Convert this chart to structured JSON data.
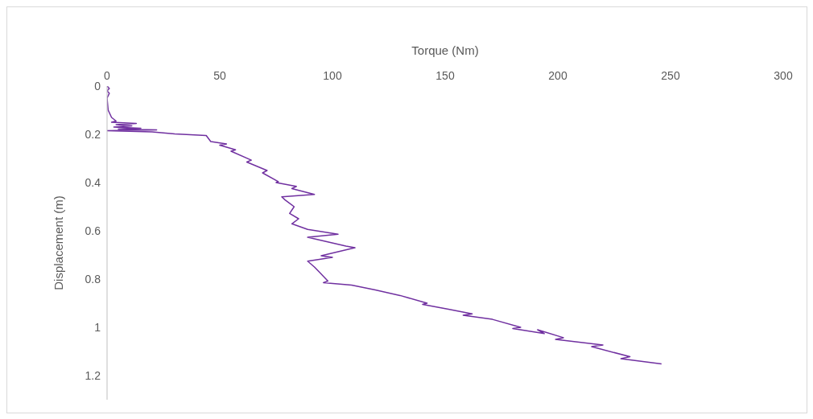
{
  "chart_data": {
    "type": "line",
    "xlabel": "Torque (Nm)",
    "ylabel": "Displacement (m)",
    "xlim": [
      0,
      300
    ],
    "xticks": [
      0,
      50,
      100,
      150,
      200,
      250,
      300
    ],
    "ylim": [
      1.3,
      0
    ],
    "yticks": [
      0,
      0.2,
      0.4,
      0.6,
      0.8,
      1,
      1.2
    ],
    "grid": false,
    "legend": false,
    "marker": "none",
    "line_style": "solid",
    "series": [
      {
        "color": "#7030a0",
        "x": [
          0,
          1,
          0,
          1,
          0,
          0.5,
          2,
          4,
          2,
          13,
          4,
          11,
          3,
          15,
          5,
          22,
          0,
          20,
          30,
          44,
          46,
          53,
          50,
          57,
          55,
          64,
          62,
          71,
          69,
          76,
          75,
          84,
          82,
          92,
          77.5,
          79,
          83,
          81,
          85,
          82,
          89,
          102.5,
          89,
          106,
          110,
          95,
          100,
          89,
          92,
          94,
          98,
          96,
          108.5,
          119,
          130,
          142,
          140,
          151,
          162,
          158,
          171,
          183.5,
          180,
          194,
          191,
          202.5,
          199,
          220,
          215,
          232,
          228,
          246
        ],
        "values": [
          0,
          0.01,
          0.02,
          0.03,
          0.05,
          0.1,
          0.13,
          0.145,
          0.15,
          0.155,
          0.16,
          0.165,
          0.17,
          0.175,
          0.178,
          0.182,
          0.185,
          0.19,
          0.198,
          0.205,
          0.23,
          0.24,
          0.245,
          0.264,
          0.27,
          0.307,
          0.315,
          0.35,
          0.36,
          0.396,
          0.4,
          0.416,
          0.425,
          0.449,
          0.459,
          0.472,
          0.5,
          0.528,
          0.55,
          0.571,
          0.594,
          0.614,
          0.627,
          0.663,
          0.67,
          0.703,
          0.71,
          0.726,
          0.75,
          0.769,
          0.808,
          0.815,
          0.825,
          0.845,
          0.868,
          0.9,
          0.905,
          0.924,
          0.944,
          0.95,
          0.967,
          1.0,
          1.005,
          1.026,
          1.01,
          1.043,
          1.05,
          1.073,
          1.08,
          1.122,
          1.13,
          1.152
        ]
      }
    ]
  }
}
